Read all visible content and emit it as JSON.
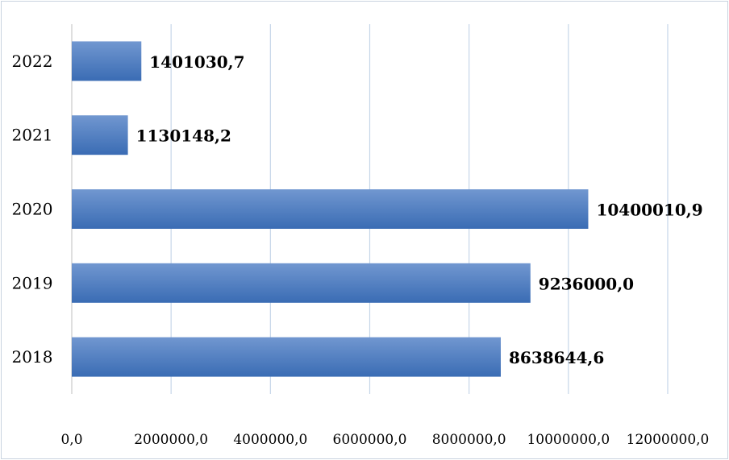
{
  "chart_data": {
    "type": "bar",
    "orientation": "horizontal",
    "categories": [
      "2018",
      "2019",
      "2020",
      "2021",
      "2022"
    ],
    "values": [
      8638644.6,
      9236000.0,
      10400010.9,
      1130148.2,
      1401030.7
    ],
    "data_labels": [
      "8638644,6",
      "9236000,0",
      "10400010,9",
      "1130148,2",
      "1401030,7"
    ],
    "xlim": [
      0,
      12000000
    ],
    "x_ticks": [
      0,
      2000000,
      4000000,
      6000000,
      8000000,
      10000000,
      12000000
    ],
    "x_tick_labels": [
      "0,0",
      "2000000,0",
      "4000000,0",
      "6000000,0",
      "8000000,0",
      "10000000,0",
      "12000000,0"
    ],
    "grid": true,
    "legend": "none",
    "colors": {
      "bar_top": "#7197d0",
      "bar_bottom": "#3a6cb4",
      "grid": "#c6d6e8"
    }
  }
}
